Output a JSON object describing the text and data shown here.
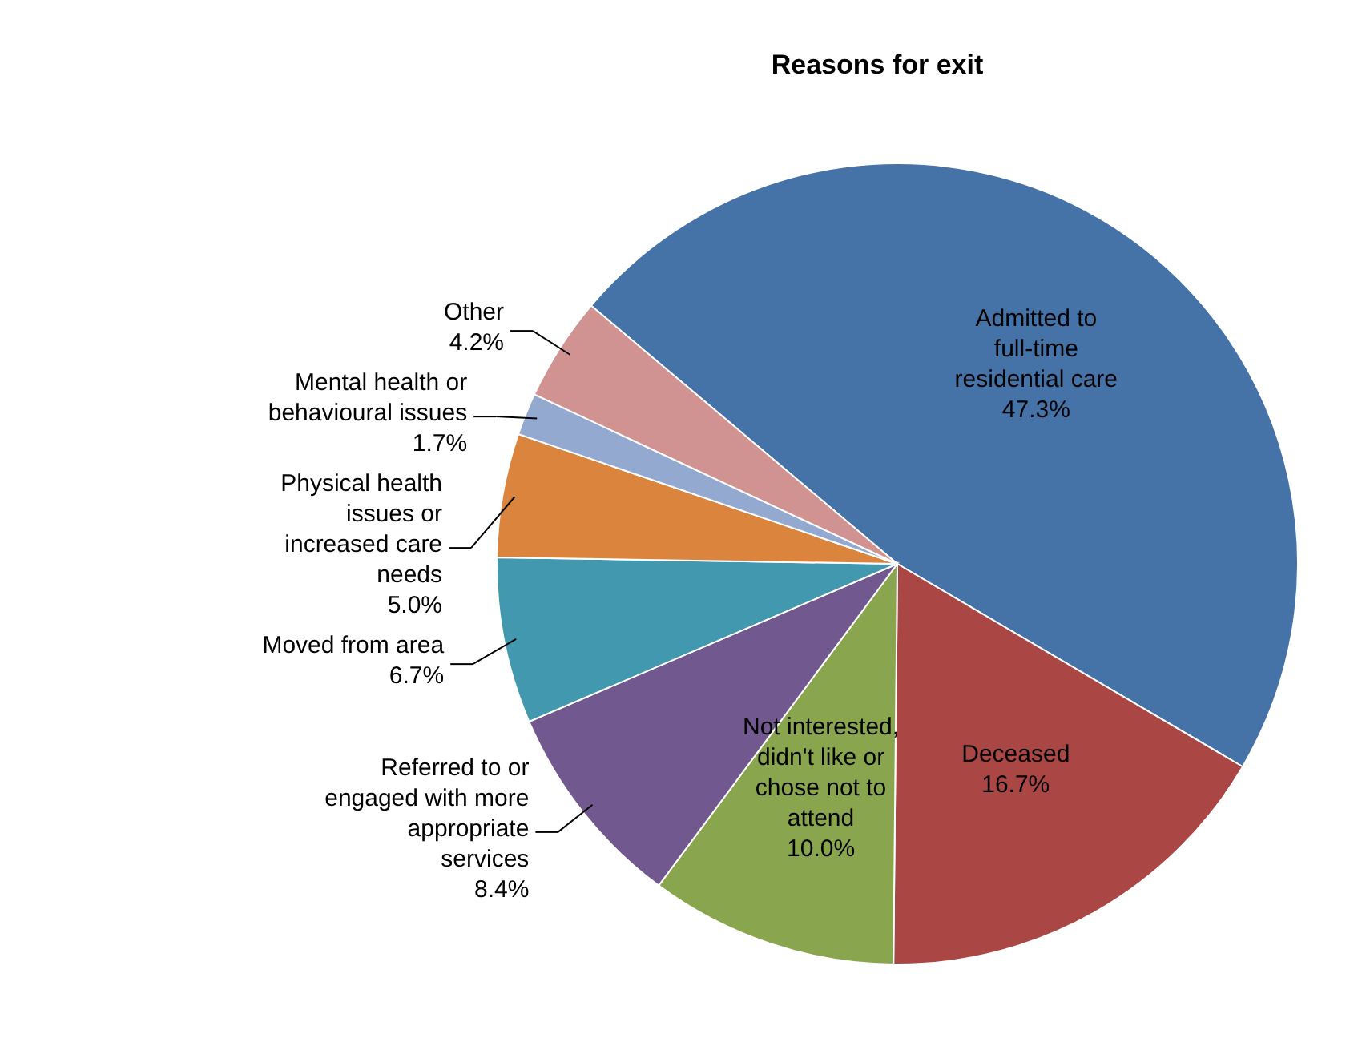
{
  "chart_data": {
    "type": "pie",
    "title": "Reasons for exit",
    "categories": [
      "Admitted to full-time residential care",
      "Deceased",
      "Not interested, didn't like or chose not to attend",
      "Referred to or engaged with more appropriate services",
      "Moved from area",
      "Physical health issues or increased care needs",
      "Mental health or behavioural issues",
      "Other"
    ],
    "values": [
      47.3,
      16.7,
      10.0,
      8.4,
      6.7,
      5.0,
      1.7,
      4.2
    ],
    "value_labels": [
      "47.3%",
      "16.7%",
      "10.0%",
      "8.4%",
      "6.7%",
      "5.0%",
      "1.7%",
      "4.2%"
    ],
    "colors": [
      "#4572a7",
      "#aa4643",
      "#89a54e",
      "#71588f",
      "#4198af",
      "#db843d",
      "#93a9cf",
      "#d19392"
    ]
  }
}
